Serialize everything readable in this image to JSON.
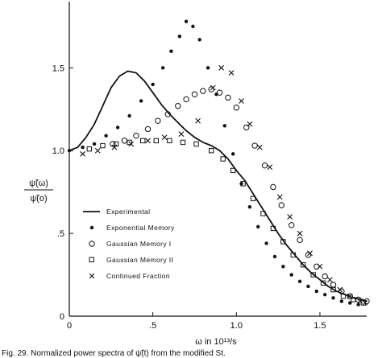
{
  "chart_data": {
    "type": "scatter",
    "xlabel": "ω in 10¹³/s",
    "ylabel": {
      "numerator": "ψ̃(ω)",
      "denominator": "ψ̃(o)"
    },
    "xlim": [
      0,
      1.78
    ],
    "ylim": [
      0,
      1.9
    ],
    "x_ticks": [
      {
        "value": 0,
        "label": "0"
      },
      {
        "value": 0.5,
        "label": ".5"
      },
      {
        "value": 1.0,
        "label": "1.0"
      },
      {
        "value": 1.5,
        "label": "1.5"
      }
    ],
    "y_ticks": [
      {
        "value": 0,
        "label": "0"
      },
      {
        "value": 0.5,
        "label": ".5"
      },
      {
        "value": 1.0,
        "label": "1.0"
      },
      {
        "value": 1.5,
        "label": "1.5"
      }
    ],
    "grid": false,
    "legend_position": "bottom-left",
    "caption": "Fig. 29. Normalized power spectra of ψ̃(t) from the modified St.",
    "series": [
      {
        "name": "Experimental",
        "marker": "line",
        "x": [
          0.0,
          0.05,
          0.1,
          0.15,
          0.2,
          0.25,
          0.3,
          0.35,
          0.4,
          0.45,
          0.5,
          0.55,
          0.6,
          0.65,
          0.7,
          0.75,
          0.8,
          0.85,
          0.9,
          0.95,
          1.0,
          1.05,
          1.1,
          1.15,
          1.2,
          1.25,
          1.3,
          1.35,
          1.4,
          1.45,
          1.5,
          1.55,
          1.6,
          1.65,
          1.7,
          1.75,
          1.78
        ],
        "y": [
          1.0,
          1.02,
          1.08,
          1.16,
          1.27,
          1.38,
          1.45,
          1.48,
          1.47,
          1.42,
          1.35,
          1.28,
          1.22,
          1.17,
          1.12,
          1.08,
          1.05,
          1.03,
          1.0,
          0.95,
          0.88,
          0.82,
          0.74,
          0.66,
          0.58,
          0.5,
          0.43,
          0.37,
          0.31,
          0.26,
          0.22,
          0.18,
          0.15,
          0.13,
          0.11,
          0.1,
          0.09
        ]
      },
      {
        "name": "Exponential Memory",
        "marker": "dot",
        "x": [
          0.0,
          0.08,
          0.15,
          0.22,
          0.29,
          0.36,
          0.43,
          0.5,
          0.56,
          0.61,
          0.66,
          0.7,
          0.74,
          0.78,
          0.83,
          0.88,
          0.93,
          0.98,
          1.03,
          1.08,
          1.13,
          1.18,
          1.23,
          1.28,
          1.33,
          1.38,
          1.43,
          1.48,
          1.53,
          1.58,
          1.63,
          1.68,
          1.73
        ],
        "y": [
          1.0,
          1.02,
          1.04,
          1.09,
          1.14,
          1.21,
          1.3,
          1.4,
          1.5,
          1.6,
          1.69,
          1.78,
          1.75,
          1.67,
          1.5,
          1.34,
          1.15,
          0.98,
          0.8,
          0.66,
          0.54,
          0.44,
          0.36,
          0.3,
          0.25,
          0.21,
          0.18,
          0.15,
          0.13,
          0.11,
          0.09,
          0.08,
          0.07
        ]
      },
      {
        "name": "Gaussian Memory I",
        "marker": "circle",
        "x": [
          0.26,
          0.33,
          0.4,
          0.47,
          0.53,
          0.59,
          0.65,
          0.7,
          0.75,
          0.8,
          0.85,
          0.9,
          0.95,
          1.0,
          1.06,
          1.11,
          1.17,
          1.22,
          1.27,
          1.33,
          1.38,
          1.43,
          1.48,
          1.53,
          1.58,
          1.63,
          1.68,
          1.73,
          1.78
        ],
        "y": [
          1.04,
          1.06,
          1.09,
          1.13,
          1.18,
          1.22,
          1.27,
          1.31,
          1.34,
          1.36,
          1.37,
          1.35,
          1.32,
          1.26,
          1.14,
          1.03,
          0.91,
          0.78,
          0.67,
          0.55,
          0.46,
          0.37,
          0.3,
          0.24,
          0.19,
          0.15,
          0.12,
          0.1,
          0.09
        ]
      },
      {
        "name": "Gaussian Memory II",
        "marker": "square",
        "x": [
          0.12,
          0.2,
          0.28,
          0.36,
          0.44,
          0.52,
          0.6,
          0.68,
          0.76,
          0.85,
          0.92,
          0.98,
          1.04,
          1.1,
          1.16,
          1.22,
          1.28,
          1.34,
          1.4,
          1.46,
          1.52,
          1.58,
          1.64,
          1.7,
          1.76
        ],
        "y": [
          1.01,
          1.03,
          1.04,
          1.05,
          1.06,
          1.06,
          1.06,
          1.05,
          1.04,
          1.0,
          0.95,
          0.88,
          0.8,
          0.71,
          0.62,
          0.53,
          0.45,
          0.37,
          0.31,
          0.25,
          0.2,
          0.16,
          0.12,
          0.1,
          0.08
        ]
      },
      {
        "name": "Continued Fraction",
        "marker": "x",
        "x": [
          0.08,
          0.17,
          0.27,
          0.37,
          0.47,
          0.57,
          0.67,
          0.77,
          0.86,
          0.91,
          0.97,
          1.03,
          1.08,
          1.14,
          1.2,
          1.26,
          1.32,
          1.38,
          1.44,
          1.5,
          1.56,
          1.62,
          1.68,
          1.74,
          1.77
        ],
        "y": [
          0.98,
          1.0,
          1.02,
          1.04,
          1.06,
          1.08,
          1.1,
          1.18,
          1.38,
          1.5,
          1.47,
          1.3,
          1.16,
          1.02,
          0.9,
          0.72,
          0.6,
          0.5,
          0.38,
          0.3,
          0.22,
          0.16,
          0.12,
          0.09,
          0.08
        ]
      }
    ]
  }
}
